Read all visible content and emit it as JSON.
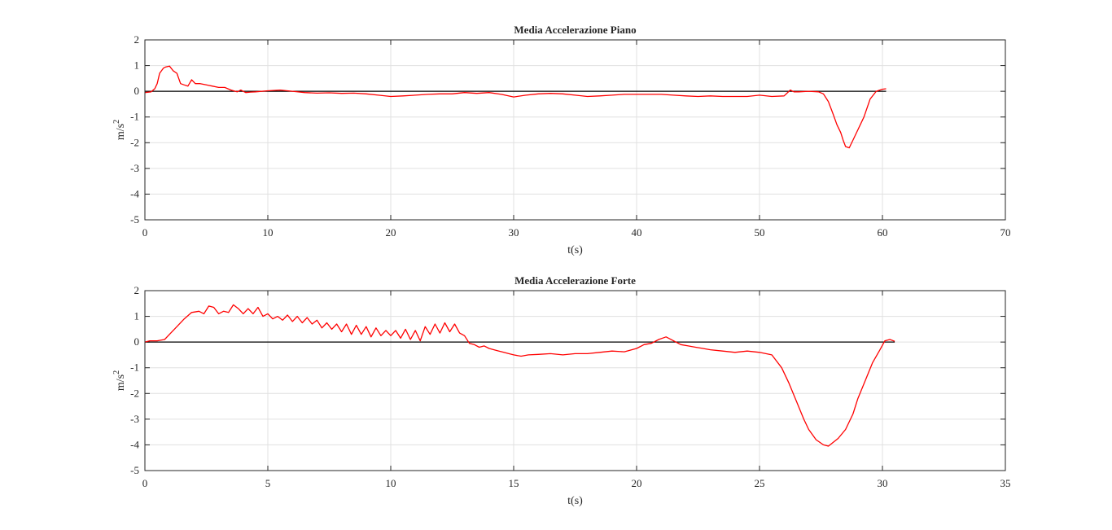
{
  "chart_data": [
    {
      "type": "line",
      "title": "Media Accelerazione Piano",
      "xlabel": "t(s)",
      "ylabel": "m/s",
      "ylabel_superscript": "2",
      "xlim": [
        0,
        70
      ],
      "ylim": [
        -5,
        2
      ],
      "xticks": [
        0,
        10,
        20,
        30,
        40,
        50,
        60,
        70
      ],
      "yticks": [
        -5,
        -4,
        -3,
        -2,
        -1,
        0,
        1,
        2
      ],
      "grid": true,
      "colors": {
        "series": "#ff0000",
        "reference": "#000000"
      },
      "reference_line": {
        "y": 0,
        "x": [
          0,
          60.3
        ]
      },
      "series": [
        {
          "x": [
            0,
            0.5,
            0.8,
            1.0,
            1.2,
            1.5,
            1.7,
            2.0,
            2.3,
            2.6,
            2.9,
            3.2,
            3.5,
            3.8,
            4.1,
            4.5,
            5.0,
            5.5,
            6.0,
            6.5,
            7.0,
            7.5,
            7.8,
            8.2,
            8.6,
            9.0,
            10,
            11,
            12,
            13,
            14,
            15,
            16,
            17,
            18,
            19,
            20,
            21,
            22,
            23,
            24,
            25,
            26,
            27,
            28,
            29,
            30,
            31,
            32,
            33,
            34,
            35,
            36,
            37,
            38,
            39,
            40,
            41,
            42,
            43,
            44,
            45,
            46,
            47,
            48,
            49,
            50,
            51,
            52,
            52.5,
            52.8,
            53.2,
            54,
            54.8,
            55.2,
            55.6,
            56.0,
            56.3,
            56.6,
            56.8,
            57.0,
            57.3,
            57.6,
            58.0,
            58.5,
            59.0,
            59.5,
            60.0,
            60.3
          ],
          "y": [
            -0.05,
            -0.02,
            0.1,
            0.3,
            0.7,
            0.9,
            0.95,
            0.98,
            0.8,
            0.7,
            0.3,
            0.25,
            0.2,
            0.45,
            0.3,
            0.3,
            0.25,
            0.2,
            0.15,
            0.15,
            0.05,
            -0.02,
            0.05,
            -0.05,
            -0.03,
            -0.02,
            0.02,
            0.05,
            0.0,
            -0.05,
            -0.07,
            -0.06,
            -0.08,
            -0.07,
            -0.1,
            -0.15,
            -0.2,
            -0.18,
            -0.15,
            -0.12,
            -0.1,
            -0.1,
            -0.05,
            -0.08,
            -0.05,
            -0.12,
            -0.22,
            -0.15,
            -0.1,
            -0.08,
            -0.1,
            -0.15,
            -0.2,
            -0.18,
            -0.15,
            -0.12,
            -0.12,
            -0.12,
            -0.12,
            -0.15,
            -0.18,
            -0.2,
            -0.18,
            -0.2,
            -0.2,
            -0.2,
            -0.15,
            -0.2,
            -0.18,
            0.05,
            -0.02,
            -0.02,
            0.0,
            -0.02,
            -0.1,
            -0.4,
            -0.9,
            -1.3,
            -1.6,
            -1.9,
            -2.15,
            -2.2,
            -1.9,
            -1.5,
            -1.0,
            -0.3,
            0.0,
            0.08,
            0.1
          ]
        }
      ]
    },
    {
      "type": "line",
      "title": "Media Accelerazione Forte",
      "xlabel": "t(s)",
      "ylabel": "m/s",
      "ylabel_superscript": "2",
      "xlim": [
        0,
        35
      ],
      "ylim": [
        -5,
        2
      ],
      "xticks": [
        0,
        5,
        10,
        15,
        20,
        25,
        30,
        35
      ],
      "yticks": [
        -5,
        -4,
        -3,
        -2,
        -1,
        0,
        1,
        2
      ],
      "grid": true,
      "colors": {
        "series": "#ff0000",
        "reference": "#000000"
      },
      "reference_line": {
        "y": 0,
        "x": [
          0,
          30.5
        ]
      },
      "series": [
        {
          "x": [
            0,
            0.2,
            0.5,
            0.8,
            1.0,
            1.3,
            1.6,
            1.9,
            2.2,
            2.4,
            2.6,
            2.8,
            3.0,
            3.2,
            3.4,
            3.6,
            3.8,
            4.0,
            4.2,
            4.4,
            4.6,
            4.8,
            5.0,
            5.2,
            5.4,
            5.6,
            5.8,
            6.0,
            6.2,
            6.4,
            6.6,
            6.8,
            7.0,
            7.2,
            7.4,
            7.6,
            7.8,
            8.0,
            8.2,
            8.4,
            8.6,
            8.8,
            9.0,
            9.2,
            9.4,
            9.6,
            9.8,
            10.0,
            10.2,
            10.4,
            10.6,
            10.8,
            11.0,
            11.2,
            11.4,
            11.6,
            11.8,
            12.0,
            12.2,
            12.4,
            12.6,
            12.8,
            13.0,
            13.2,
            13.4,
            13.6,
            13.8,
            14.0,
            14.2,
            14.4,
            14.6,
            14.8,
            15.0,
            15.3,
            15.6,
            16.0,
            16.5,
            17.0,
            17.5,
            18.0,
            18.5,
            19.0,
            19.5,
            20.0,
            20.3,
            20.6,
            20.9,
            21.2,
            21.5,
            21.8,
            22.1,
            22.4,
            22.7,
            23.0,
            23.5,
            24.0,
            24.5,
            25.0,
            25.5,
            25.9,
            26.2,
            26.5,
            26.8,
            27.0,
            27.3,
            27.6,
            27.8,
            28.0,
            28.2,
            28.5,
            28.8,
            29.0,
            29.3,
            29.6,
            29.9,
            30.1,
            30.3,
            30.5
          ],
          "y": [
            0.0,
            0.05,
            0.05,
            0.1,
            0.3,
            0.6,
            0.9,
            1.15,
            1.2,
            1.1,
            1.4,
            1.35,
            1.1,
            1.2,
            1.15,
            1.45,
            1.3,
            1.1,
            1.3,
            1.1,
            1.35,
            1.0,
            1.1,
            0.9,
            1.0,
            0.85,
            1.05,
            0.8,
            1.0,
            0.75,
            0.95,
            0.7,
            0.85,
            0.55,
            0.75,
            0.5,
            0.7,
            0.4,
            0.7,
            0.3,
            0.65,
            0.3,
            0.6,
            0.2,
            0.55,
            0.25,
            0.45,
            0.25,
            0.45,
            0.15,
            0.5,
            0.1,
            0.45,
            0.05,
            0.6,
            0.3,
            0.7,
            0.35,
            0.75,
            0.4,
            0.7,
            0.35,
            0.25,
            -0.05,
            -0.1,
            -0.2,
            -0.15,
            -0.25,
            -0.3,
            -0.35,
            -0.4,
            -0.45,
            -0.5,
            -0.55,
            -0.5,
            -0.48,
            -0.45,
            -0.5,
            -0.45,
            -0.45,
            -0.4,
            -0.35,
            -0.38,
            -0.25,
            -0.1,
            -0.05,
            0.1,
            0.2,
            0.05,
            -0.1,
            -0.15,
            -0.2,
            -0.25,
            -0.3,
            -0.35,
            -0.4,
            -0.35,
            -0.4,
            -0.5,
            -1.0,
            -1.6,
            -2.3,
            -3.0,
            -3.4,
            -3.8,
            -4.0,
            -4.05,
            -3.9,
            -3.75,
            -3.4,
            -2.8,
            -2.2,
            -1.5,
            -0.8,
            -0.3,
            0.05,
            0.1,
            0.03
          ]
        }
      ]
    }
  ]
}
